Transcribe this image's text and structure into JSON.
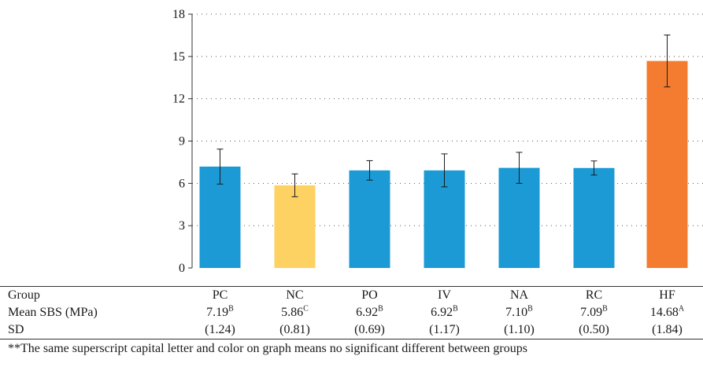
{
  "chart_data": {
    "type": "bar",
    "categories": [
      "PC",
      "NC",
      "PO",
      "IV",
      "NA",
      "RC",
      "HF"
    ],
    "values": [
      7.19,
      5.86,
      6.92,
      6.92,
      7.1,
      7.09,
      14.68
    ],
    "errors": [
      1.24,
      0.81,
      0.69,
      1.17,
      1.1,
      0.5,
      1.84
    ],
    "colors": [
      "#1b9ad6",
      "#fdd263",
      "#1b9ad6",
      "#1b9ad6",
      "#1b9ad6",
      "#1b9ad6",
      "#f47c30"
    ],
    "yticks": [
      0,
      3,
      6,
      9,
      12,
      15,
      18
    ],
    "ylim": [
      0,
      18
    ],
    "grid": "dotted-horizontal",
    "title": "",
    "xlabel": "",
    "ylabel": ""
  },
  "table": {
    "row_labels": {
      "group": "Group",
      "mean": "Mean SBS (MPa)",
      "sd": "SD"
    },
    "groups": [
      "PC",
      "NC",
      "PO",
      "IV",
      "NA",
      "RC",
      "HF"
    ],
    "means": [
      "7.19",
      "5.86",
      "6.92",
      "6.92",
      "7.10",
      "7.09",
      "14.68"
    ],
    "superscripts": [
      "B",
      "C",
      "B",
      "B",
      "B",
      "B",
      "A"
    ],
    "sds": [
      "(1.24)",
      "(0.81)",
      "(0.69)",
      "(1.17)",
      "(1.10)",
      "(0.50)",
      "(1.84)"
    ]
  },
  "footnote": "**The same superscript capital letter and color on graph means no significant different between groups"
}
